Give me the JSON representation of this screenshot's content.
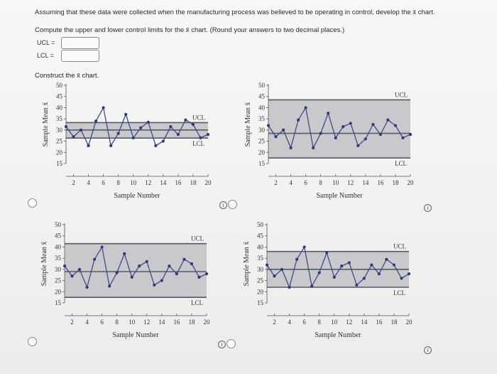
{
  "question": {
    "line1": "Assuming that these data were collected when the manufacturing process was believed to be operating in control, develop the x̄ chart.",
    "line2": "Compute the upper and lower control limits for the x̄ chart. (Round your answers to two decimal places.)"
  },
  "answers": {
    "ucl_label": "UCL =",
    "lcl_label": "LCL =",
    "ucl_value": "",
    "lcl_value": ""
  },
  "construct_text": "Construct the x̄ chart.",
  "info_glyph": "i",
  "options": [
    {
      "id": "A",
      "selected": false
    },
    {
      "id": "B",
      "selected": false
    },
    {
      "id": "C",
      "selected": false
    },
    {
      "id": "D",
      "selected": false
    }
  ],
  "chart_data": [
    {
      "type": "line",
      "option": "A",
      "ylabel": "Sample Mean x̄",
      "xlabel": "Sample Number",
      "ylim": [
        15,
        50
      ],
      "xlim": [
        1,
        20
      ],
      "yticks": [
        15,
        20,
        25,
        30,
        35,
        40,
        45,
        50
      ],
      "xticks": [
        2,
        4,
        6,
        8,
        10,
        12,
        14,
        16,
        18,
        20
      ],
      "ucl": 33.3,
      "center": 30.0,
      "lcl": 26.4,
      "ucl_text": "UCL",
      "lcl_text": "LCL",
      "x": [
        1,
        2,
        3,
        4,
        5,
        6,
        7,
        8,
        9,
        10,
        11,
        12,
        13,
        14,
        15,
        16,
        17,
        18,
        19,
        20
      ],
      "y": [
        31.5,
        27,
        30,
        23,
        34,
        40,
        23,
        28.5,
        37,
        26.5,
        31,
        33.5,
        23,
        25,
        31.5,
        28,
        34.5,
        32.5,
        26.5,
        28
      ]
    },
    {
      "type": "line",
      "option": "B",
      "ylabel": "Sample Mean x̄",
      "xlabel": "Sample Number",
      "ylim": [
        15,
        50
      ],
      "xlim": [
        1,
        20
      ],
      "yticks": [
        15,
        20,
        25,
        30,
        35,
        40,
        45,
        50
      ],
      "xticks": [
        2,
        4,
        6,
        8,
        10,
        12,
        14,
        16,
        18,
        20
      ],
      "ucl": 43.5,
      "center": 28.5,
      "lcl": 17.5,
      "ucl_text": "UCL",
      "lcl_text": "LCL",
      "x": [
        1,
        2,
        3,
        4,
        5,
        6,
        7,
        8,
        9,
        10,
        11,
        12,
        13,
        14,
        15,
        16,
        17,
        18,
        19,
        20
      ],
      "y": [
        32,
        27,
        30,
        22,
        34.5,
        40,
        22,
        28.5,
        37.5,
        26.5,
        31.5,
        33,
        23,
        26,
        32.5,
        28,
        34.5,
        32,
        26.5,
        28
      ]
    },
    {
      "type": "line",
      "option": "C",
      "ylabel": "Sample Mean x̄",
      "xlabel": "Sample Number",
      "ylim": [
        15,
        50
      ],
      "xlim": [
        1,
        20
      ],
      "yticks": [
        15,
        20,
        25,
        30,
        35,
        40,
        45,
        50
      ],
      "xticks": [
        2,
        4,
        6,
        8,
        10,
        12,
        14,
        16,
        18,
        20
      ],
      "ucl": 41.5,
      "center": 29.0,
      "lcl": 17.5,
      "ucl_text": "UCL",
      "lcl_text": "LCL",
      "x": [
        1,
        2,
        3,
        4,
        5,
        6,
        7,
        8,
        9,
        10,
        11,
        12,
        13,
        14,
        15,
        16,
        17,
        18,
        19,
        20
      ],
      "y": [
        31.5,
        27,
        30,
        22,
        34.5,
        40,
        22.5,
        28.5,
        37,
        26.5,
        31.5,
        33.5,
        23,
        25,
        31.5,
        28,
        34.5,
        32.5,
        26.5,
        28
      ]
    },
    {
      "type": "line",
      "option": "D",
      "ylabel": "Sample Mean x̄",
      "xlabel": "Sample Number",
      "ylim": [
        15,
        50
      ],
      "xlim": [
        1,
        20
      ],
      "yticks": [
        15,
        20,
        25,
        30,
        35,
        40,
        45,
        50
      ],
      "xticks": [
        2,
        4,
        6,
        8,
        10,
        12,
        14,
        16,
        18,
        20
      ],
      "ucl": 38.0,
      "center": 30.0,
      "lcl": 22.0,
      "ucl_text": "UCL",
      "lcl_text": "LCL",
      "x": [
        1,
        2,
        3,
        4,
        5,
        6,
        7,
        8,
        9,
        10,
        11,
        12,
        13,
        14,
        15,
        16,
        17,
        18,
        19,
        20
      ],
      "y": [
        32,
        27,
        30,
        22,
        34.5,
        40,
        22.5,
        28.5,
        37.5,
        26.5,
        31.5,
        33,
        23,
        26,
        32,
        28,
        34.5,
        32,
        26,
        28
      ]
    }
  ]
}
